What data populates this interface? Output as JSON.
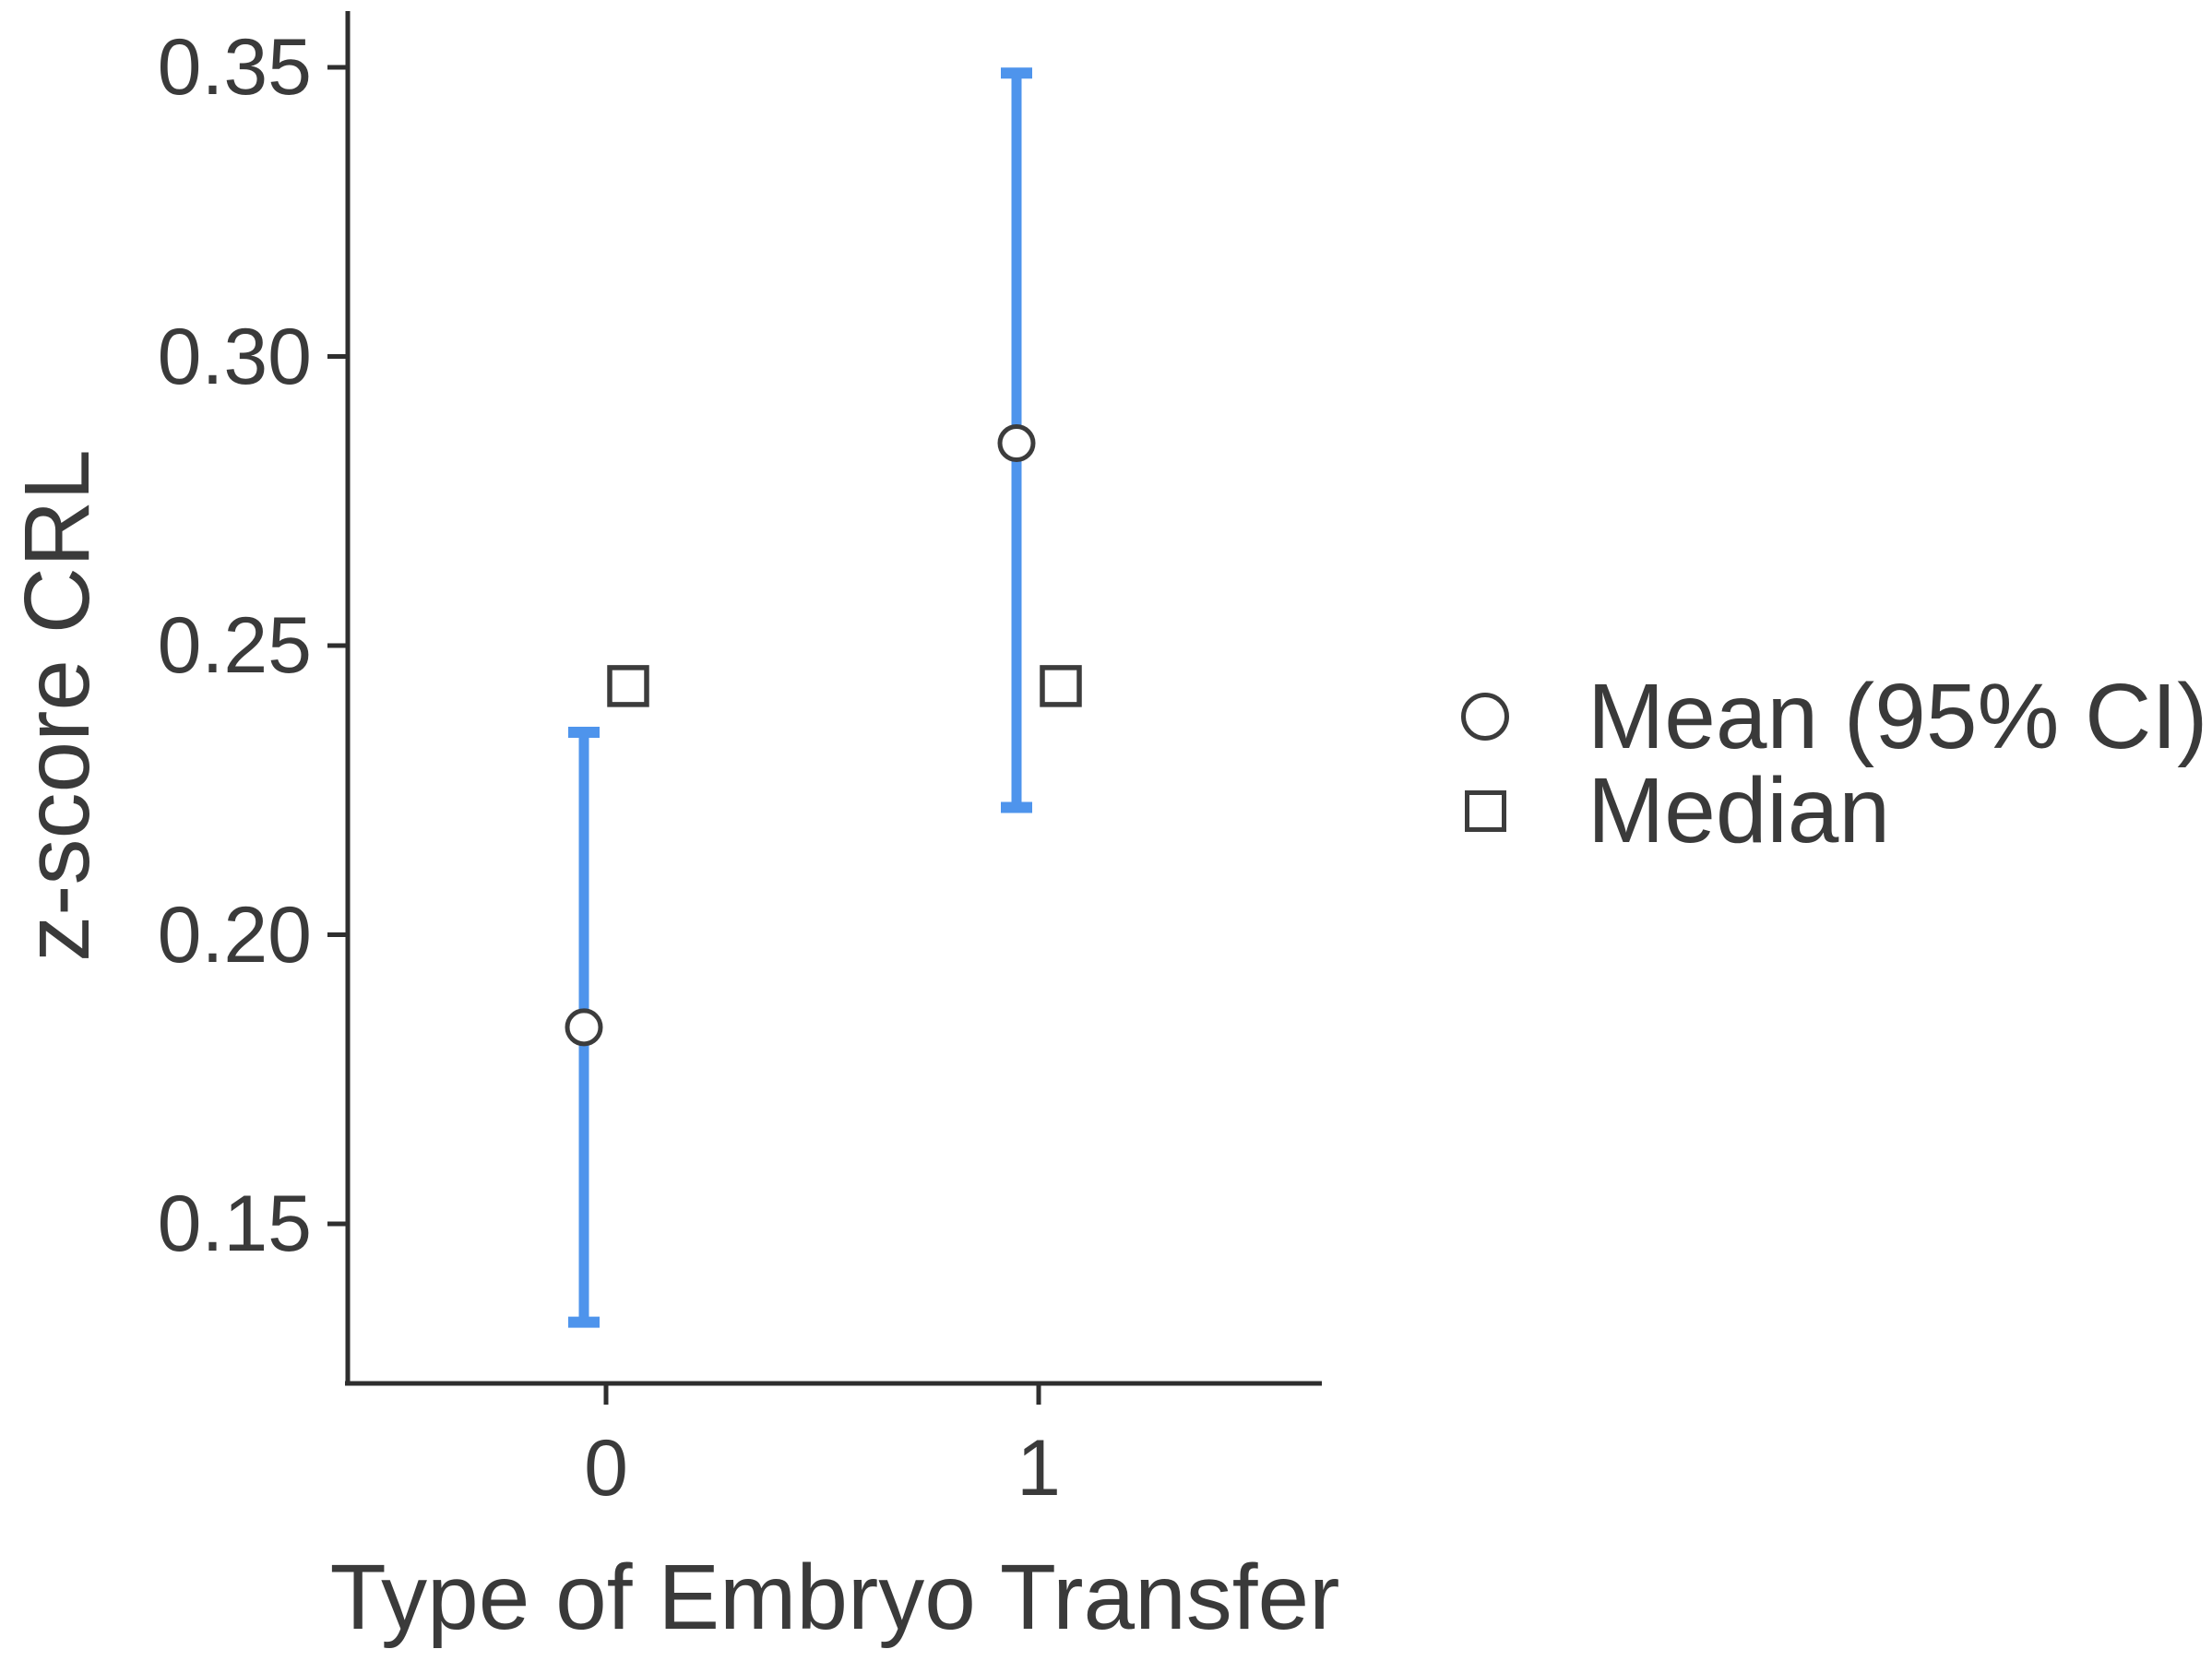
{
  "chart_data": {
    "type": "scatter",
    "subtype": "point-range (mean with 95% CI error bars plus median markers)",
    "title": "",
    "xlabel": "Type of Embryo Transfer",
    "ylabel": "z-score CRL",
    "categories": [
      "0",
      "1"
    ],
    "yticks": [
      0.15,
      0.2,
      0.25,
      0.3,
      0.35
    ],
    "ytick_labels": [
      "0.15",
      "0.20",
      "0.25",
      "0.30",
      "0.35"
    ],
    "ylim": [
      0.122,
      0.361
    ],
    "grid": false,
    "legend_position": "right",
    "series": [
      {
        "name": "Mean (95% CI)",
        "marker": "circle",
        "values": [
          0.184,
          0.285
        ],
        "ci_low": [
          0.133,
          0.222
        ],
        "ci_high": [
          0.235,
          0.349
        ]
      },
      {
        "name": "Median",
        "marker": "square",
        "values": [
          0.243,
          0.243
        ]
      }
    ],
    "legend": [
      {
        "label": "Mean (95% CI)",
        "marker": "circle"
      },
      {
        "label": "Median",
        "marker": "square"
      }
    ],
    "colors": {
      "error_bar": "#4E94EC",
      "marker_stroke": "#3C3C3C",
      "marker_fill": "#FFFFFF",
      "axis": "#2E2E2E",
      "text": "#3A3A3A"
    }
  }
}
